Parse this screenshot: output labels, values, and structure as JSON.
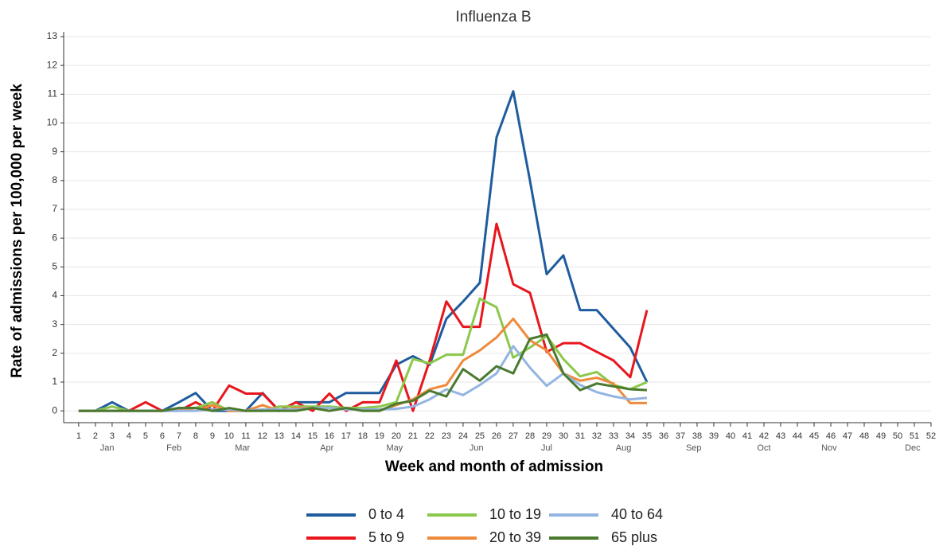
{
  "chart_data": {
    "type": "line",
    "title": "Influenza B",
    "xlabel": "Week and month of admission",
    "ylabel": "Rate of admissions per 100,000 per week",
    "x": [
      1,
      2,
      3,
      4,
      5,
      6,
      7,
      8,
      9,
      10,
      11,
      12,
      13,
      14,
      15,
      16,
      17,
      18,
      19,
      20,
      21,
      22,
      23,
      24,
      25,
      26,
      27,
      28,
      29,
      30,
      31,
      32,
      33,
      34,
      35
    ],
    "xlim": [
      0.1,
      52
    ],
    "xticks": [
      1,
      2,
      3,
      4,
      5,
      6,
      7,
      8,
      9,
      10,
      11,
      12,
      13,
      14,
      15,
      16,
      17,
      18,
      19,
      20,
      21,
      22,
      23,
      24,
      25,
      26,
      27,
      28,
      29,
      30,
      31,
      32,
      33,
      34,
      35,
      36,
      37,
      38,
      39,
      40,
      41,
      42,
      43,
      44,
      45,
      46,
      47,
      48,
      49,
      50,
      51,
      52
    ],
    "month_ticks": [
      {
        "value": 2.7,
        "label": "Jan"
      },
      {
        "value": 6.7,
        "label": "Feb"
      },
      {
        "value": 10.8,
        "label": "Mar"
      },
      {
        "value": 15.85,
        "label": "Apr"
      },
      {
        "value": 19.9,
        "label": "May"
      },
      {
        "value": 24.8,
        "label": "Jun"
      },
      {
        "value": 29,
        "label": "Jul"
      },
      {
        "value": 33.6,
        "label": "Aug"
      },
      {
        "value": 37.8,
        "label": "Sep"
      },
      {
        "value": 42,
        "label": "Oct"
      },
      {
        "value": 45.9,
        "label": "Nov"
      },
      {
        "value": 50.9,
        "label": "Dec"
      }
    ],
    "ylim": [
      -0.41,
      13
    ],
    "yticks": [
      0,
      1,
      2,
      3,
      4,
      5,
      6,
      7,
      8,
      9,
      10,
      11,
      12,
      13
    ],
    "grid": true,
    "legend": "bottom",
    "series": [
      {
        "name": "0 to 4",
        "color": "#1f5c9e",
        "values": [
          0,
          0,
          0.3,
          0,
          0,
          0,
          0.3,
          0.62,
          0,
          0,
          0,
          0.62,
          0,
          0.3,
          0.3,
          0.3,
          0.62,
          0.62,
          0.62,
          1.6,
          1.9,
          1.6,
          3.2,
          3.8,
          4.45,
          9.5,
          11.1,
          8,
          4.75,
          5.4,
          3.5,
          3.5,
          2.85,
          2.2,
          1.0
        ]
      },
      {
        "name": "5 to 9",
        "color": "#e8161c",
        "values": [
          0,
          0,
          0,
          0,
          0.3,
          0,
          0,
          0.3,
          0,
          0.88,
          0.6,
          0.6,
          0,
          0.3,
          0,
          0.6,
          0,
          0.3,
          0.3,
          1.75,
          0,
          1.75,
          3.8,
          2.92,
          2.92,
          6.5,
          4.4,
          4.1,
          2.05,
          2.35,
          2.35,
          2.05,
          1.75,
          1.17,
          3.5
        ]
      },
      {
        "name": "10 to 19",
        "color": "#8cc84b",
        "values": [
          0,
          0,
          0.15,
          0,
          0,
          0,
          0.1,
          0.1,
          0.3,
          0,
          0,
          0,
          0.15,
          0.15,
          0.15,
          0.15,
          0.1,
          0.1,
          0.15,
          0.3,
          1.8,
          1.65,
          1.95,
          1.95,
          3.9,
          3.6,
          1.85,
          2.2,
          2.6,
          1.8,
          1.2,
          1.35,
          0.9,
          0.75,
          1.0
        ]
      },
      {
        "name": "20 to 39",
        "color": "#ee8a3c",
        "values": [
          0,
          0,
          0,
          0,
          0,
          0,
          0.1,
          0,
          0.2,
          0,
          0,
          0.2,
          0,
          0.1,
          0.1,
          0,
          0.1,
          0,
          0,
          0.2,
          0.4,
          0.75,
          0.9,
          1.75,
          2.1,
          2.55,
          3.2,
          2.45,
          2.1,
          1.3,
          1.05,
          1.15,
          0.95,
          0.27,
          0.27
        ]
      },
      {
        "name": "40 to 64",
        "color": "#94b4e2",
        "values": [
          0,
          0,
          0,
          0,
          0,
          0,
          0,
          0,
          0.05,
          0.05,
          0,
          0.05,
          0.05,
          0.05,
          0.1,
          0.1,
          0.05,
          0.05,
          0.05,
          0.07,
          0.15,
          0.4,
          0.75,
          0.55,
          0.9,
          1.3,
          2.25,
          1.5,
          0.87,
          1.3,
          0.9,
          0.65,
          0.5,
          0.4,
          0.45
        ]
      },
      {
        "name": "65 plus",
        "color": "#4a7a2e",
        "values": [
          0,
          0,
          0,
          0,
          0,
          0,
          0.1,
          0.1,
          0,
          0.1,
          0,
          0,
          0,
          0,
          0.1,
          0,
          0.1,
          0,
          0,
          0.25,
          0.35,
          0.7,
          0.5,
          1.45,
          1.05,
          1.55,
          1.3,
          2.5,
          2.65,
          1.3,
          0.72,
          0.95,
          0.85,
          0.75,
          0.72
        ]
      }
    ]
  }
}
